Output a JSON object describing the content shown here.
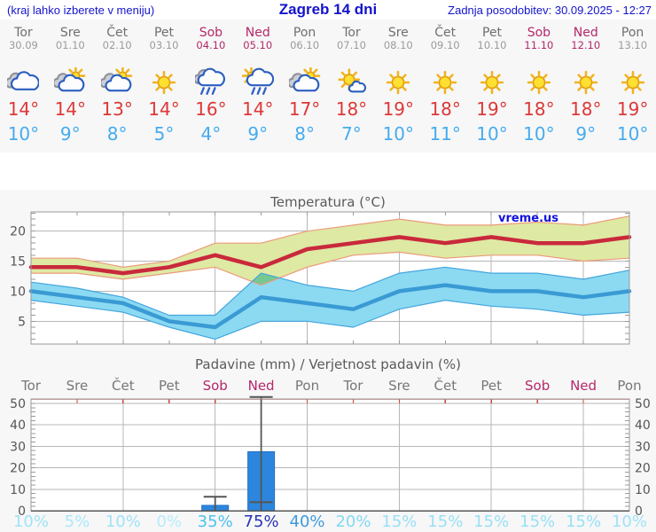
{
  "header": {
    "left": "(kraj lahko izberete v meniju)",
    "title": "Zagreb 14 dni",
    "right": "Zadnja posodobitev: 30.09.2025 - 12:27"
  },
  "colors": {
    "link_blue": "#1414cc",
    "watermark_blue": "#1212dd",
    "weekend": "#b5286a",
    "day_name": "#6f6f6f",
    "day_date": "#9b9b9b",
    "tmax_text": "#dd3838",
    "tmin_text": "#46abef",
    "tmax_line": "#c9293b",
    "tmin_line": "#3a9ad4",
    "tmax_band": "#dee9a4",
    "tmin_band": "#8bdaf2",
    "band_overlap": "#76c893",
    "tmax_band_edge": "#ec9a7a",
    "tmin_band_edge": "#44a5dd",
    "bar_fill": "#2d86dd",
    "bar_stroke": "#1f6fc4",
    "whisker": "#555555",
    "grid": "#b7b7b7",
    "frame": "#9a9a9a",
    "axis_text": "#555555",
    "title_text": "#5a5a5a",
    "chart_day_label": "#777777",
    "precip_top_border": "#e8a0a0",
    "precip_day_tick": "#cc4444",
    "panel_bg": "#f7f7f7",
    "plot_bg": "#ffffff"
  },
  "days": [
    {
      "name": "Tor",
      "date": "30.09",
      "weekend": false,
      "icon": "cloudy",
      "tmax": 14,
      "tmin": 10,
      "pop": "10%",
      "pop_color": "#9fe3f7"
    },
    {
      "name": "Sre",
      "date": "01.10",
      "weekend": false,
      "icon": "partly-cloudy",
      "tmax": 14,
      "tmin": 9,
      "pop": "5%",
      "pop_color": "#abe8fa"
    },
    {
      "name": "Čet",
      "date": "02.10",
      "weekend": false,
      "icon": "partly-cloudy",
      "tmax": 13,
      "tmin": 8,
      "pop": "10%",
      "pop_color": "#9fe3f7"
    },
    {
      "name": "Pet",
      "date": "03.10",
      "weekend": false,
      "icon": "sunny",
      "tmax": 14,
      "tmin": 5,
      "pop": "0%",
      "pop_color": "#b6ecfb"
    },
    {
      "name": "Sob",
      "date": "04.10",
      "weekend": true,
      "icon": "rain",
      "tmax": 16,
      "tmin": 4,
      "pop": "35%",
      "pop_color": "#4cc1ef"
    },
    {
      "name": "Ned",
      "date": "05.10",
      "weekend": true,
      "icon": "sun-rain",
      "tmax": 14,
      "tmin": 9,
      "pop": "75%",
      "pop_color": "#2733b5"
    },
    {
      "name": "Pon",
      "date": "06.10",
      "weekend": false,
      "icon": "partly-cloudy",
      "tmax": 17,
      "tmin": 8,
      "pop": "40%",
      "pop_color": "#3e9ade"
    },
    {
      "name": "Tor",
      "date": "07.10",
      "weekend": false,
      "icon": "mostly-sunny",
      "tmax": 18,
      "tmin": 7,
      "pop": "20%",
      "pop_color": "#84d8f3"
    },
    {
      "name": "Sre",
      "date": "08.10",
      "weekend": false,
      "icon": "sunny",
      "tmax": 19,
      "tmin": 10,
      "pop": "15%",
      "pop_color": "#99e0f6"
    },
    {
      "name": "Čet",
      "date": "09.10",
      "weekend": false,
      "icon": "sunny",
      "tmax": 18,
      "tmin": 11,
      "pop": "15%",
      "pop_color": "#99e0f6"
    },
    {
      "name": "Pet",
      "date": "10.10",
      "weekend": false,
      "icon": "sunny",
      "tmax": 19,
      "tmin": 10,
      "pop": "15%",
      "pop_color": "#99e0f6"
    },
    {
      "name": "Sob",
      "date": "11.10",
      "weekend": true,
      "icon": "sunny",
      "tmax": 18,
      "tmin": 10,
      "pop": "15%",
      "pop_color": "#99e0f6"
    },
    {
      "name": "Ned",
      "date": "12.10",
      "weekend": true,
      "icon": "sunny",
      "tmax": 18,
      "tmin": 9,
      "pop": "15%",
      "pop_color": "#99e0f6"
    },
    {
      "name": "Pon",
      "date": "13.10",
      "weekend": false,
      "icon": "sunny",
      "tmax": 19,
      "tmin": 10,
      "pop": "10%",
      "pop_color": "#9fe3f7"
    }
  ],
  "chart_data": [
    {
      "type": "line-band",
      "title": "Temperatura (°C)",
      "watermark": "vreme.us",
      "categories": [
        "Tor 30.09",
        "Sre 01.10",
        "Čet 02.10",
        "Pet 03.10",
        "Sob 04.10",
        "Ned 05.10",
        "Pon 06.10",
        "Tor 07.10",
        "Sre 08.10",
        "Čet 09.10",
        "Pet 10.10",
        "Sob 11.10",
        "Ned 12.10",
        "Pon 13.10"
      ],
      "tmax": [
        14,
        14,
        13,
        14,
        16,
        14,
        17,
        18,
        19,
        18,
        19,
        18,
        18,
        19
      ],
      "tmax_band": {
        "high": [
          15.5,
          15.5,
          14,
          15,
          18,
          18,
          20,
          21,
          22,
          21,
          21,
          21.5,
          21,
          22.5
        ],
        "low": [
          13,
          13,
          12,
          13,
          14,
          11,
          14,
          16,
          16.5,
          15.5,
          16,
          16,
          15,
          15.5
        ]
      },
      "tmin": [
        10,
        9,
        8,
        5,
        4,
        9,
        8,
        7,
        10,
        11,
        10,
        10,
        9,
        10
      ],
      "tmin_band": {
        "high": [
          11.5,
          10.5,
          9,
          6,
          6,
          13,
          11,
          10,
          13,
          14,
          13,
          13,
          12,
          13.5
        ],
        "low": [
          8.5,
          7.5,
          6.5,
          4,
          2,
          5,
          5,
          4,
          7,
          8.5,
          7.5,
          7,
          6,
          6.5
        ]
      },
      "ylim": [
        1.2,
        23.2
      ],
      "yticks": [
        5,
        10,
        15,
        20
      ],
      "grid": true,
      "legend": "none"
    },
    {
      "type": "bar",
      "title": "Padavine (mm) / Verjetnost padavin (%)",
      "categories": [
        "Tor",
        "Sre",
        "Čet",
        "Pet",
        "Sob",
        "Ned",
        "Pon",
        "Tor",
        "Sre",
        "Čet",
        "Pet",
        "Sob",
        "Ned",
        "Pon"
      ],
      "precip_mm": [
        0,
        0,
        0,
        0,
        2.5,
        27.5,
        0,
        0,
        0,
        0,
        0,
        0,
        0,
        0
      ],
      "precip_range": {
        "low": [
          0,
          0,
          0,
          0,
          0,
          4,
          0,
          0,
          0,
          0,
          0,
          0,
          0,
          0
        ],
        "high": [
          0,
          0,
          0,
          0,
          6.5,
          53,
          0,
          0,
          0,
          0,
          0,
          0,
          0,
          0
        ]
      },
      "probability": [
        "10%",
        "5%",
        "10%",
        "0%",
        "35%",
        "75%",
        "40%",
        "20%",
        "15%",
        "15%",
        "15%",
        "15%",
        "15%",
        "10%"
      ],
      "ylim": [
        0,
        52
      ],
      "yticks": [
        0,
        10,
        20,
        30,
        40,
        50
      ],
      "grid": true,
      "legend": "none"
    }
  ]
}
